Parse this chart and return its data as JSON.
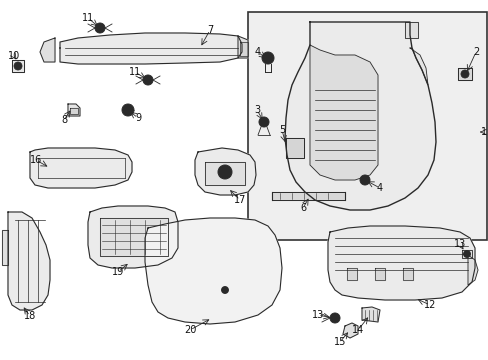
{
  "background_color": "#ffffff",
  "line_color": "#2a2a2a",
  "box_fill": "#efefef",
  "part_fill": "#f0f0f0",
  "part_fill2": "#e0e0e0",
  "figsize": [
    4.89,
    3.6
  ],
  "dpi": 100
}
